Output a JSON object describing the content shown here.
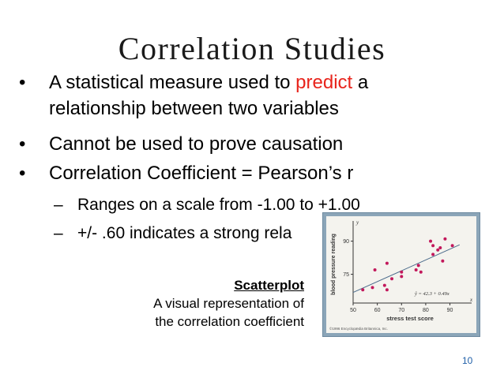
{
  "slide": {
    "title": "Correlation Studies",
    "bullets": {
      "b1_pre": "A statistical measure used to ",
      "b1_red": "predict",
      "b1_post": " a",
      "b1_line2": "relationship between two variables",
      "b2": "Cannot be used to prove causation",
      "b3": "Correlation Coefficient = Pearson’s r"
    },
    "subbullets": {
      "s1": "Ranges on a scale from -1.00 to +1.00",
      "s2": "+/- .60 indicates a strong rela"
    },
    "caption": {
      "title": "Scatterplot",
      "line1": "A visual representation of",
      "line2": "the correlation coefficient"
    },
    "page_number": "10",
    "colors": {
      "accent_red": "#e8241c",
      "page_number": "#1f5fa8",
      "plot_frame": "#8ba5b8"
    }
  },
  "chart_data": {
    "type": "scatter",
    "xlabel": "stress test score",
    "ylabel": "blood pressure reading",
    "y_axis_marker": "y",
    "x_axis_marker": "x",
    "xticks": [
      "50",
      "60",
      "70",
      "80",
      "90"
    ],
    "yticks": [
      "75",
      "90"
    ],
    "xlim": [
      50,
      97
    ],
    "ylim": [
      62,
      97
    ],
    "equation": "ŷ = 42.3 + 0.49x",
    "copyright": "©1996 Encyclopædia Britannica, Inc.",
    "points": [
      {
        "x": 54,
        "y": 68
      },
      {
        "x": 58,
        "y": 69
      },
      {
        "x": 59,
        "y": 77
      },
      {
        "x": 63,
        "y": 70
      },
      {
        "x": 64,
        "y": 68
      },
      {
        "x": 64,
        "y": 80
      },
      {
        "x": 66,
        "y": 73
      },
      {
        "x": 70,
        "y": 74
      },
      {
        "x": 70,
        "y": 76
      },
      {
        "x": 76,
        "y": 77
      },
      {
        "x": 77,
        "y": 79
      },
      {
        "x": 78,
        "y": 76
      },
      {
        "x": 83,
        "y": 84
      },
      {
        "x": 83,
        "y": 88
      },
      {
        "x": 85,
        "y": 86
      },
      {
        "x": 86,
        "y": 87
      },
      {
        "x": 87,
        "y": 81
      },
      {
        "x": 88,
        "y": 91
      },
      {
        "x": 91,
        "y": 88
      },
      {
        "x": 82,
        "y": 90
      }
    ],
    "regression": {
      "intercept": 42.3,
      "slope": 0.49
    },
    "grid": false
  }
}
